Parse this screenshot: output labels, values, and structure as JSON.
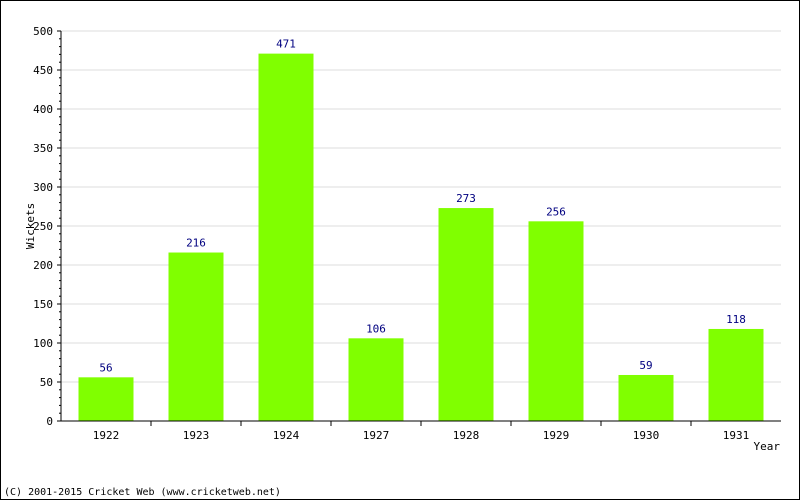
{
  "chart_data": {
    "type": "bar",
    "title": "",
    "xlabel": "Year",
    "ylabel": "Wickets",
    "categories": [
      "1922",
      "1923",
      "1924",
      "1927",
      "1928",
      "1929",
      "1930",
      "1931"
    ],
    "values": [
      56,
      216,
      471,
      106,
      273,
      256,
      59,
      118
    ],
    "ylim": [
      0,
      500
    ],
    "yticks": [
      0,
      50,
      100,
      150,
      200,
      250,
      300,
      350,
      400,
      450,
      500
    ],
    "grid": true,
    "bar_color": "#80ff00",
    "data_label_color": "#000080",
    "grid_color": "#dddddd"
  },
  "footer": "(C) 2001-2015 Cricket Web (www.cricketweb.net)"
}
